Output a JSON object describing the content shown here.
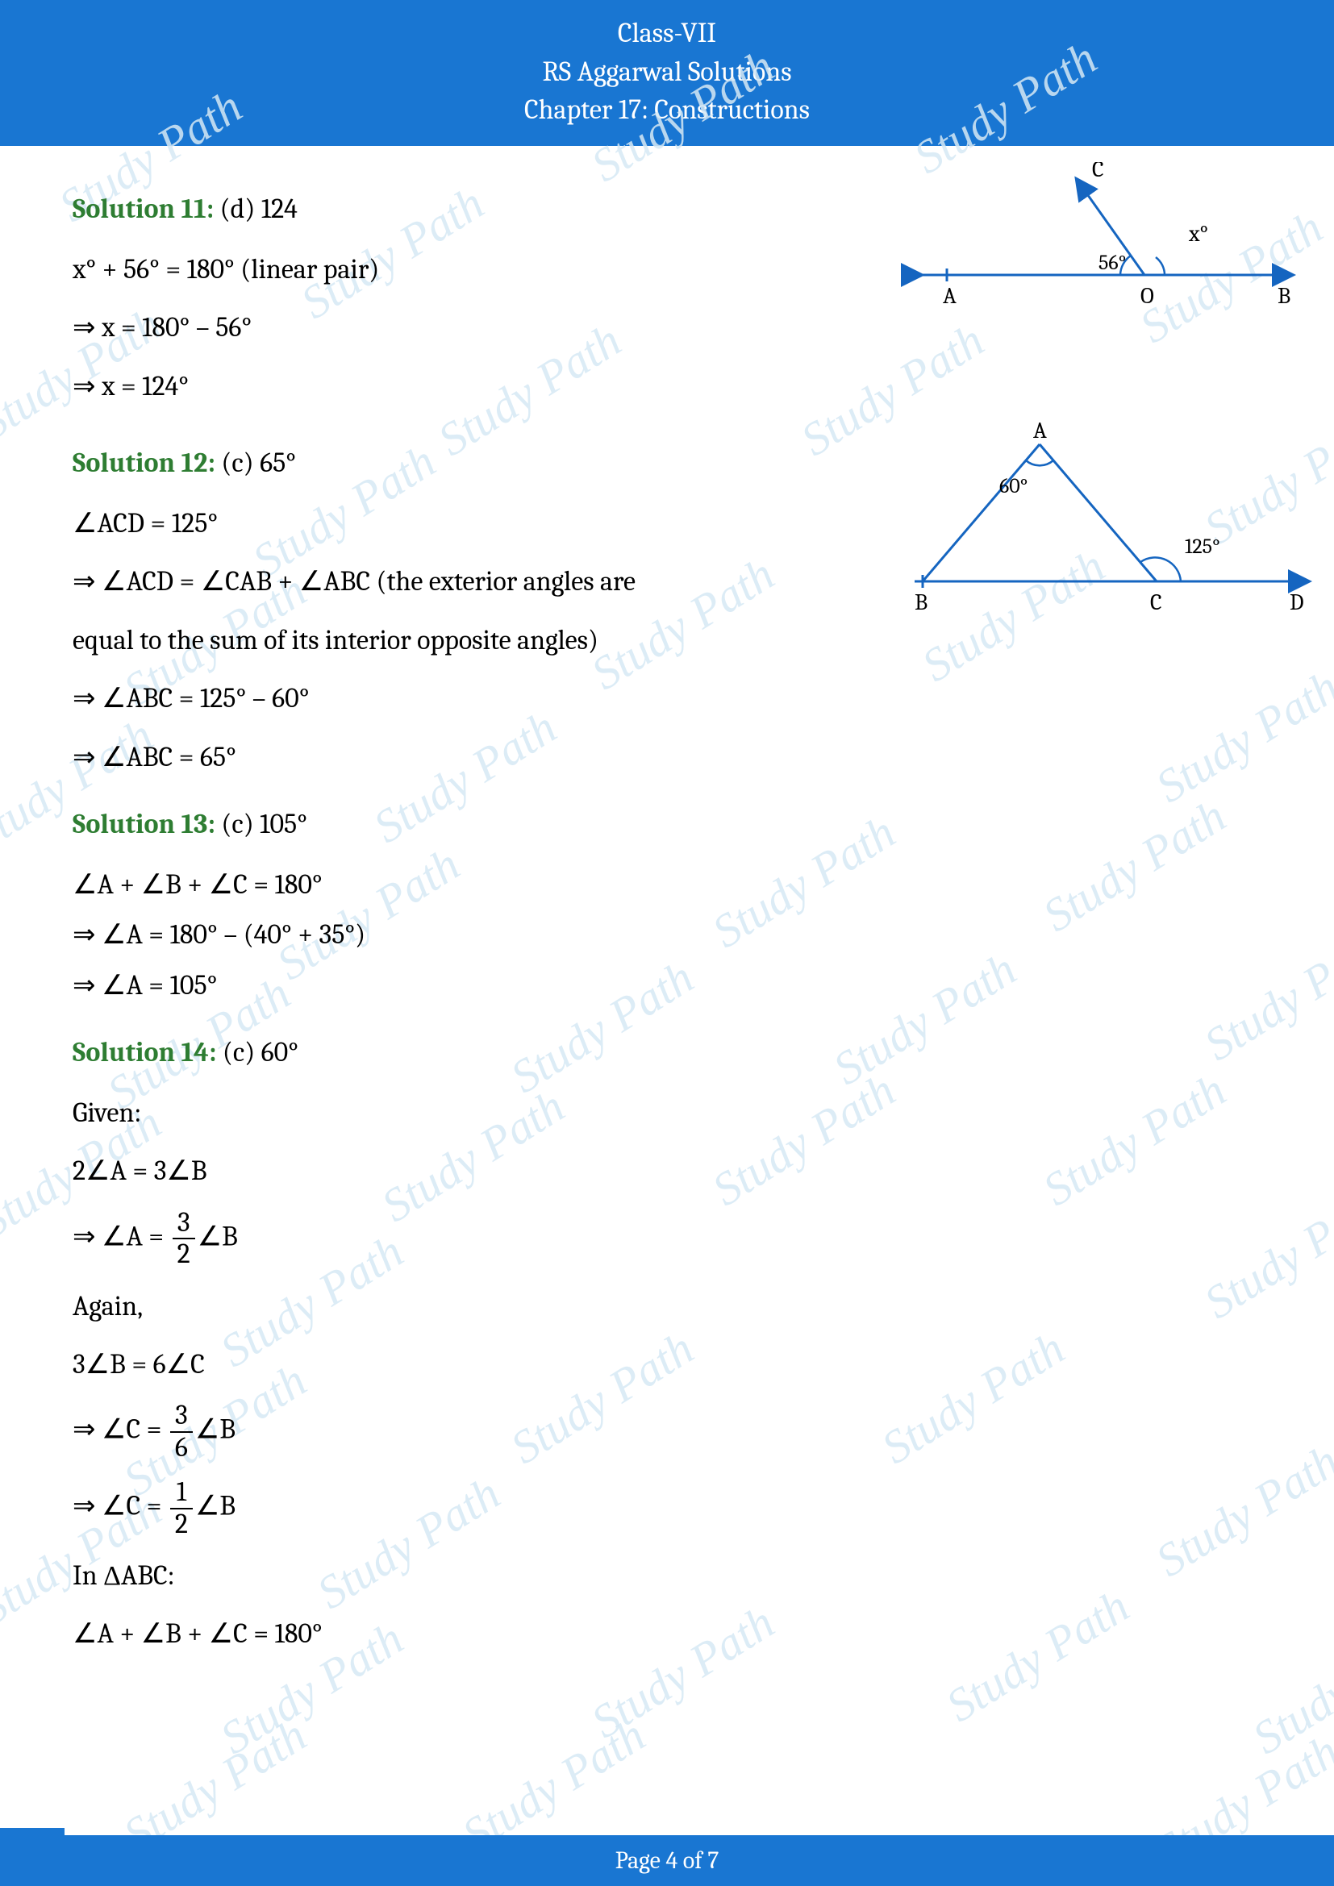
{
  "header": {
    "line1": "Class-VII",
    "line2": "RS Aggarwal Solutions",
    "line3": "Chapter 17: Constructions"
  },
  "footer": {
    "text": "Page 4 of 7"
  },
  "watermark": {
    "text": "Study Path",
    "color": "#d6e9f5",
    "positions": [
      [
        60,
        160
      ],
      [
        720,
        110
      ],
      [
        1120,
        100
      ],
      [
        360,
        280
      ],
      [
        1400,
        310
      ],
      [
        -40,
        430
      ],
      [
        530,
        450
      ],
      [
        980,
        450
      ],
      [
        300,
        600
      ],
      [
        1480,
        560
      ],
      [
        140,
        760
      ],
      [
        720,
        740
      ],
      [
        1130,
        730
      ],
      [
        -50,
        940
      ],
      [
        450,
        930
      ],
      [
        1420,
        880
      ],
      [
        330,
        1100
      ],
      [
        870,
        1060
      ],
      [
        1280,
        1040
      ],
      [
        120,
        1260
      ],
      [
        620,
        1240
      ],
      [
        1020,
        1230
      ],
      [
        1480,
        1200
      ],
      [
        -40,
        1420
      ],
      [
        460,
        1400
      ],
      [
        870,
        1380
      ],
      [
        1280,
        1380
      ],
      [
        260,
        1580
      ],
      [
        1480,
        1520
      ],
      [
        140,
        1740
      ],
      [
        620,
        1700
      ],
      [
        1080,
        1700
      ],
      [
        -40,
        1900
      ],
      [
        380,
        1880
      ],
      [
        1420,
        1840
      ],
      [
        260,
        2060
      ],
      [
        720,
        2040
      ],
      [
        1160,
        2020
      ],
      [
        1540,
        2060
      ],
      [
        140,
        2180
      ],
      [
        560,
        2180
      ],
      [
        1420,
        2200
      ]
    ]
  },
  "solutions": {
    "s11": {
      "label": "Solution 11:",
      "answer": " (d) 124",
      "lines": [
        "x° + 56° = 180° (linear pair)",
        "⇒ x = 180° – 56°",
        "⇒ x = 124°"
      ]
    },
    "s12": {
      "label": "Solution 12:",
      "answer": " (c) 65°",
      "lines": [
        "∠ACD = 125°",
        "⇒ ∠ACD = ∠CAB + ∠ABC   (the exterior angles are",
        " equal to the sum of its interior opposite angles)",
        "⇒ ∠ABC = 125° – 60°",
        "⇒ ∠ABC = 65°"
      ]
    },
    "s13": {
      "label": "Solution 13:",
      "answer": " (c) 105°",
      "lines": [
        "∠A + ∠B + ∠C = 180°",
        "⇒ ∠A = 180° – (40° + 35°)",
        "⇒ ∠A = 105°"
      ]
    },
    "s14": {
      "label": "Solution 14:",
      "answer": " (c) 60°",
      "given": "Given:",
      "eq1": "2∠A = 3∠B",
      "eq2_prefix": "⇒ ∠A = ",
      "eq2_num": "3",
      "eq2_den": "2",
      "eq2_suffix": "∠B",
      "again": "Again,",
      "eq3": "3∠B = 6∠C",
      "eq4_prefix": "⇒ ∠C = ",
      "eq4_num": "3",
      "eq4_den": "6",
      "eq4_suffix": "∠B",
      "eq5_prefix": "⇒ ∠C = ",
      "eq5_num": "1",
      "eq5_den": "2",
      "eq5_suffix": "∠B",
      "inabc": "In ΔABC:",
      "eq6": "∠A + ∠B + ∠C = 180°"
    }
  },
  "diagrams": {
    "d11": {
      "stroke": "#1565c0",
      "text_color": "#000000",
      "labels": {
        "A": "A",
        "B": "B",
        "C": "C",
        "O": "O",
        "x": "x°",
        "angle": "56°"
      }
    },
    "d12": {
      "stroke": "#1565c0",
      "text_color": "#000000",
      "labels": {
        "A": "A",
        "B": "B",
        "C": "C",
        "D": "D",
        "a60": "60°",
        "a125": "125°"
      }
    }
  }
}
